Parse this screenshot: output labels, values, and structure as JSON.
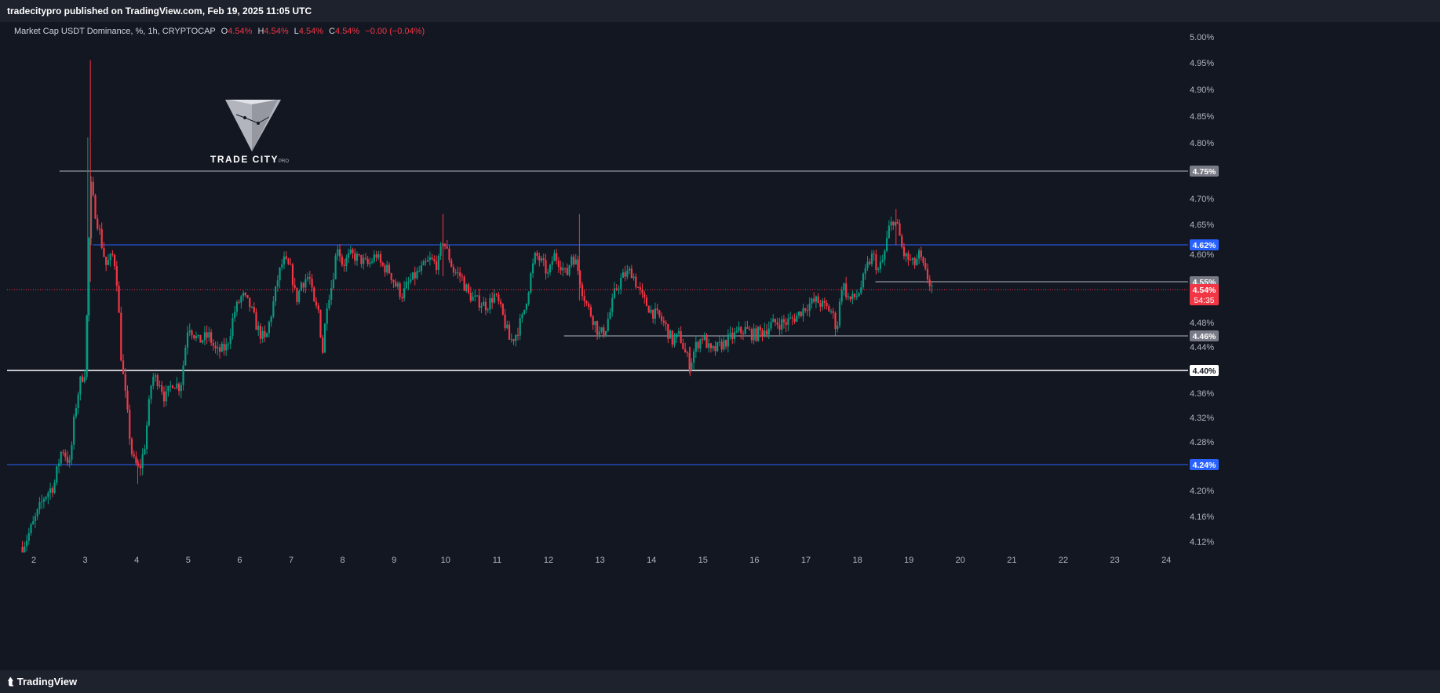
{
  "header": {
    "published": "tradecitypro published on TradingView.com, Feb 19, 2025 11:05 UTC"
  },
  "legend": {
    "symbol": "Market Cap USDT Dominance, %, 1h, CRYPTOCAP",
    "o_label": "O",
    "o_value": "4.54%",
    "h_label": "H",
    "h_value": "4.54%",
    "l_label": "L",
    "l_value": "4.54%",
    "c_label": "C",
    "c_value": "4.54%",
    "change": "−0.00 (−0.04%)"
  },
  "watermark": {
    "brand": "TRADE CITY",
    "suffix": "PRO"
  },
  "footer": {
    "brand": "TradingView"
  },
  "colors": {
    "background": "#131722",
    "up": "#089981",
    "down": "#f23645",
    "level_blue": "#2962ff",
    "level_gray": "#787b86",
    "level_white": "#ffffff"
  },
  "chart_data": {
    "type": "candlestick",
    "x_label_dates": [
      "2",
      "3",
      "4",
      "5",
      "6",
      "7",
      "8",
      "9",
      "10",
      "11",
      "12",
      "13",
      "14",
      "15",
      "16",
      "17",
      "18",
      "19",
      "20",
      "21",
      "22",
      "23",
      "24"
    ],
    "y_axis_labels": [
      "5.00%",
      "4.95%",
      "4.90%",
      "4.85%",
      "4.80%",
      "4.70%",
      "4.65%",
      "4.60%",
      "4.48%",
      "4.44%",
      "4.36%",
      "4.32%",
      "4.28%",
      "4.20%",
      "4.16%",
      "4.12%"
    ],
    "ylim": [
      4.1,
      5.01
    ],
    "current_price": {
      "label": "4.54%",
      "countdown": "54:35",
      "value": 4.54
    },
    "levels": [
      {
        "value": 4.75,
        "label": "4.75%",
        "color": "#b2b5be",
        "label_bg": "#787b86",
        "from_day": 2.5
      },
      {
        "value": 4.62,
        "label": "4.62%",
        "color": "#2962ff",
        "label_bg": "#2962ff",
        "from_day": 3.15
      },
      {
        "value": 4.55,
        "label": "4.55%",
        "color": "#b2b5be",
        "label_bg": "#787b86",
        "from_day": 18.35
      },
      {
        "value": 4.46,
        "label": "4.46%",
        "color": "#b2b5be",
        "label_bg": "#787b86",
        "from_day": 12.3
      },
      {
        "value": 4.4,
        "label": "4.40%",
        "color": "#ffffff",
        "label_bg": "#ffffff",
        "from_day": 1.5
      },
      {
        "value": 4.24,
        "label": "4.24%",
        "color": "#2962ff",
        "label_bg": "#2962ff",
        "from_day": 1.5
      }
    ],
    "path_points": [
      [
        1.78,
        4.11
      ],
      [
        2.0,
        4.15
      ],
      [
        2.2,
        4.19
      ],
      [
        2.4,
        4.21
      ],
      [
        2.55,
        4.27
      ],
      [
        2.7,
        4.24
      ],
      [
        2.8,
        4.33
      ],
      [
        2.9,
        4.38
      ],
      [
        3.0,
        4.4
      ],
      [
        3.05,
        4.55
      ],
      [
        3.1,
        4.73
      ],
      [
        3.2,
        4.67
      ],
      [
        3.3,
        4.63
      ],
      [
        3.4,
        4.58
      ],
      [
        3.55,
        4.6
      ],
      [
        3.62,
        4.55
      ],
      [
        3.7,
        4.42
      ],
      [
        3.85,
        4.3
      ],
      [
        3.92,
        4.25
      ],
      [
        4.05,
        4.23
      ],
      [
        4.15,
        4.27
      ],
      [
        4.3,
        4.39
      ],
      [
        4.45,
        4.38
      ],
      [
        4.55,
        4.35
      ],
      [
        4.7,
        4.38
      ],
      [
        4.85,
        4.37
      ],
      [
        5.0,
        4.48
      ],
      [
        5.2,
        4.45
      ],
      [
        5.4,
        4.46
      ],
      [
        5.55,
        4.43
      ],
      [
        5.75,
        4.44
      ],
      [
        5.9,
        4.5
      ],
      [
        6.05,
        4.53
      ],
      [
        6.2,
        4.51
      ],
      [
        6.35,
        4.47
      ],
      [
        6.5,
        4.45
      ],
      [
        6.6,
        4.49
      ],
      [
        6.75,
        4.56
      ],
      [
        6.85,
        4.59
      ],
      [
        7.0,
        4.57
      ],
      [
        7.1,
        4.52
      ],
      [
        7.2,
        4.55
      ],
      [
        7.35,
        4.56
      ],
      [
        7.45,
        4.51
      ],
      [
        7.55,
        4.5
      ],
      [
        7.6,
        4.42
      ],
      [
        7.7,
        4.52
      ],
      [
        7.8,
        4.55
      ],
      [
        7.9,
        4.62
      ],
      [
        8.0,
        4.58
      ],
      [
        8.15,
        4.6
      ],
      [
        8.35,
        4.59
      ],
      [
        8.5,
        4.58
      ],
      [
        8.65,
        4.6
      ],
      [
        8.75,
        4.58
      ],
      [
        8.9,
        4.57
      ],
      [
        9.0,
        4.55
      ],
      [
        9.15,
        4.53
      ],
      [
        9.3,
        4.55
      ],
      [
        9.5,
        4.57
      ],
      [
        9.7,
        4.59
      ],
      [
        9.85,
        4.58
      ],
      [
        9.95,
        4.63
      ],
      [
        10.05,
        4.6
      ],
      [
        10.15,
        4.57
      ],
      [
        10.3,
        4.56
      ],
      [
        10.45,
        4.53
      ],
      [
        10.6,
        4.52
      ],
      [
        10.8,
        4.51
      ],
      [
        10.95,
        4.53
      ],
      [
        11.05,
        4.51
      ],
      [
        11.15,
        4.48
      ],
      [
        11.25,
        4.45
      ],
      [
        11.35,
        4.46
      ],
      [
        11.5,
        4.49
      ],
      [
        11.65,
        4.56
      ],
      [
        11.75,
        4.6
      ],
      [
        11.9,
        4.58
      ],
      [
        12.0,
        4.56
      ],
      [
        12.1,
        4.6
      ],
      [
        12.25,
        4.58
      ],
      [
        12.35,
        4.56
      ],
      [
        12.45,
        4.6
      ],
      [
        12.55,
        4.58
      ],
      [
        12.65,
        4.54
      ],
      [
        12.75,
        4.51
      ],
      [
        12.9,
        4.48
      ],
      [
        13.0,
        4.46
      ],
      [
        13.1,
        4.47
      ],
      [
        13.2,
        4.5
      ],
      [
        13.3,
        4.54
      ],
      [
        13.45,
        4.56
      ],
      [
        13.6,
        4.57
      ],
      [
        13.75,
        4.54
      ],
      [
        13.85,
        4.52
      ],
      [
        14.0,
        4.5
      ],
      [
        14.15,
        4.49
      ],
      [
        14.3,
        4.47
      ],
      [
        14.4,
        4.45
      ],
      [
        14.55,
        4.46
      ],
      [
        14.65,
        4.43
      ],
      [
        14.75,
        4.41
      ],
      [
        14.85,
        4.44
      ],
      [
        15.0,
        4.46
      ],
      [
        15.15,
        4.43
      ],
      [
        15.3,
        4.44
      ],
      [
        15.45,
        4.45
      ],
      [
        15.6,
        4.46
      ],
      [
        15.8,
        4.47
      ],
      [
        16.0,
        4.46
      ],
      [
        16.2,
        4.47
      ],
      [
        16.4,
        4.48
      ],
      [
        16.6,
        4.48
      ],
      [
        16.8,
        4.49
      ],
      [
        17.0,
        4.51
      ],
      [
        17.2,
        4.52
      ],
      [
        17.35,
        4.51
      ],
      [
        17.5,
        4.5
      ],
      [
        17.6,
        4.47
      ],
      [
        17.7,
        4.55
      ],
      [
        17.85,
        4.52
      ],
      [
        18.0,
        4.53
      ],
      [
        18.1,
        4.55
      ],
      [
        18.2,
        4.58
      ],
      [
        18.3,
        4.6
      ],
      [
        18.4,
        4.57
      ],
      [
        18.5,
        4.59
      ],
      [
        18.6,
        4.64
      ],
      [
        18.7,
        4.66
      ],
      [
        18.8,
        4.64
      ],
      [
        18.9,
        4.6
      ],
      [
        19.0,
        4.59
      ],
      [
        19.1,
        4.58
      ],
      [
        19.2,
        4.6
      ],
      [
        19.3,
        4.57
      ],
      [
        19.4,
        4.55
      ],
      [
        19.47,
        4.54
      ]
    ],
    "wick_spikes": [
      {
        "day": 3.1,
        "high": 4.955,
        "low": 4.55
      },
      {
        "day": 3.05,
        "high": 4.81,
        "low": 4.4
      },
      {
        "day": 9.95,
        "high": 4.67,
        "low": 4.56
      },
      {
        "day": 12.6,
        "high": 4.67,
        "low": 4.52
      },
      {
        "day": 18.75,
        "high": 4.68,
        "low": 4.62
      },
      {
        "day": 4.02,
        "high": 4.25,
        "low": 4.21
      },
      {
        "day": 14.75,
        "high": 4.44,
        "low": 4.39
      }
    ]
  }
}
